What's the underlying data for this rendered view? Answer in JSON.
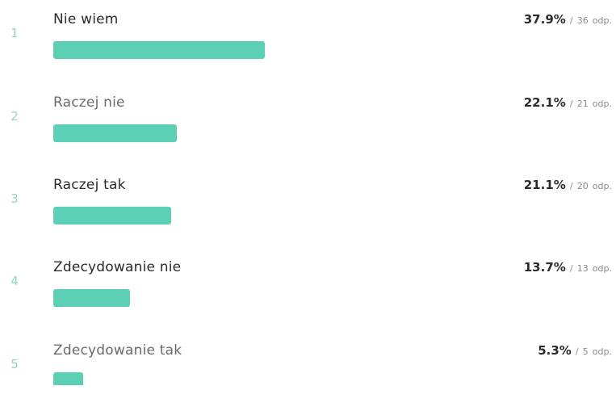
{
  "unit_label": "odp.",
  "separator": "/",
  "accent_color": "#5ccfb5",
  "max_percent": 37.9,
  "answers": [
    {
      "rank": "1",
      "label": "Nie wiem",
      "percent_text": "37.9%",
      "percent": 37.9,
      "count": "36"
    },
    {
      "rank": "2",
      "label": "Raczej nie",
      "percent_text": "22.1%",
      "percent": 22.1,
      "count": "21"
    },
    {
      "rank": "3",
      "label": "Raczej tak",
      "percent_text": "21.1%",
      "percent": 21.1,
      "count": "20"
    },
    {
      "rank": "4",
      "label": "Zdecydowanie nie",
      "percent_text": "13.7%",
      "percent": 13.7,
      "count": "13"
    },
    {
      "rank": "5",
      "label": "Zdecydowanie tak",
      "percent_text": "5.3%",
      "percent": 5.3,
      "count": "5"
    }
  ]
}
